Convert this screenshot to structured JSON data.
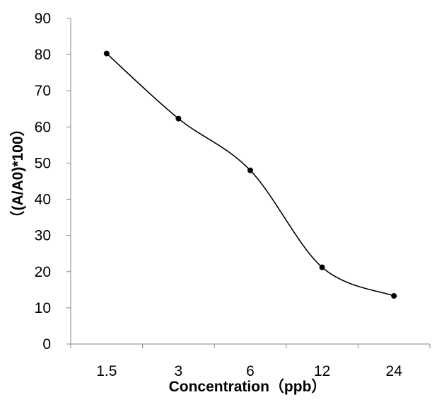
{
  "chart_data": {
    "type": "line",
    "categories": [
      "1.5",
      "3",
      "6",
      "12",
      "24"
    ],
    "series": [
      {
        "values": [
          80.3,
          62.3,
          48.0,
          21.2,
          13.3
        ]
      }
    ],
    "title": "",
    "xlabel": "Concentration（ppb）",
    "ylabel": "（(A/A0)*100）",
    "ylim": [
      0,
      90
    ],
    "yticks": [
      0,
      10,
      20,
      30,
      40,
      50,
      60,
      70,
      80,
      90
    ],
    "grid": false,
    "smooth": true,
    "marker": "circle",
    "colors": {
      "line": "#000000",
      "marker": "#000000",
      "axis": "#878787"
    }
  }
}
